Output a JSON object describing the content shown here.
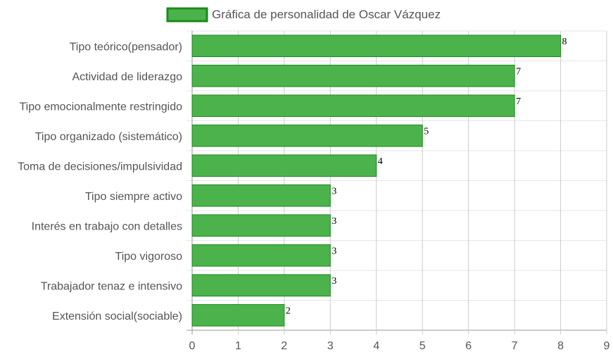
{
  "chart_data": {
    "type": "bar",
    "orientation": "horizontal",
    "title": "",
    "xlabel": "",
    "ylabel": "",
    "legend": {
      "position": "top-center",
      "entries": [
        "Gráfica de personalidad de Oscar Vázquez"
      ]
    },
    "series": [
      {
        "name": "Gráfica de personalidad de Oscar Vázquez",
        "color": "#4cb34c",
        "border_color": "#1a8a1a",
        "values": [
          8,
          7,
          7,
          5,
          4,
          3,
          3,
          3,
          3,
          2
        ]
      }
    ],
    "categories": [
      "Tipo teórico(pensador)",
      "Actividad de liderazgo",
      "Tipo emocionalmente restringido",
      "Tipo organizado (sistemático)",
      "Toma de decisiones/impulsividad",
      "Tipo siempre activo",
      "Interés en trabajo con detalles",
      "Tipo vigoroso",
      "Trabajador tenaz e intensivo",
      "Extensión social(sociable)"
    ],
    "data_labels": [
      "8",
      "7",
      "7",
      "5",
      "4",
      "3",
      "3",
      "3",
      "3",
      "2"
    ],
    "xlim": [
      0,
      9
    ],
    "x_ticks": [
      "0",
      "1",
      "2",
      "3",
      "4",
      "5",
      "6",
      "7",
      "8",
      "9"
    ],
    "grid": true
  }
}
